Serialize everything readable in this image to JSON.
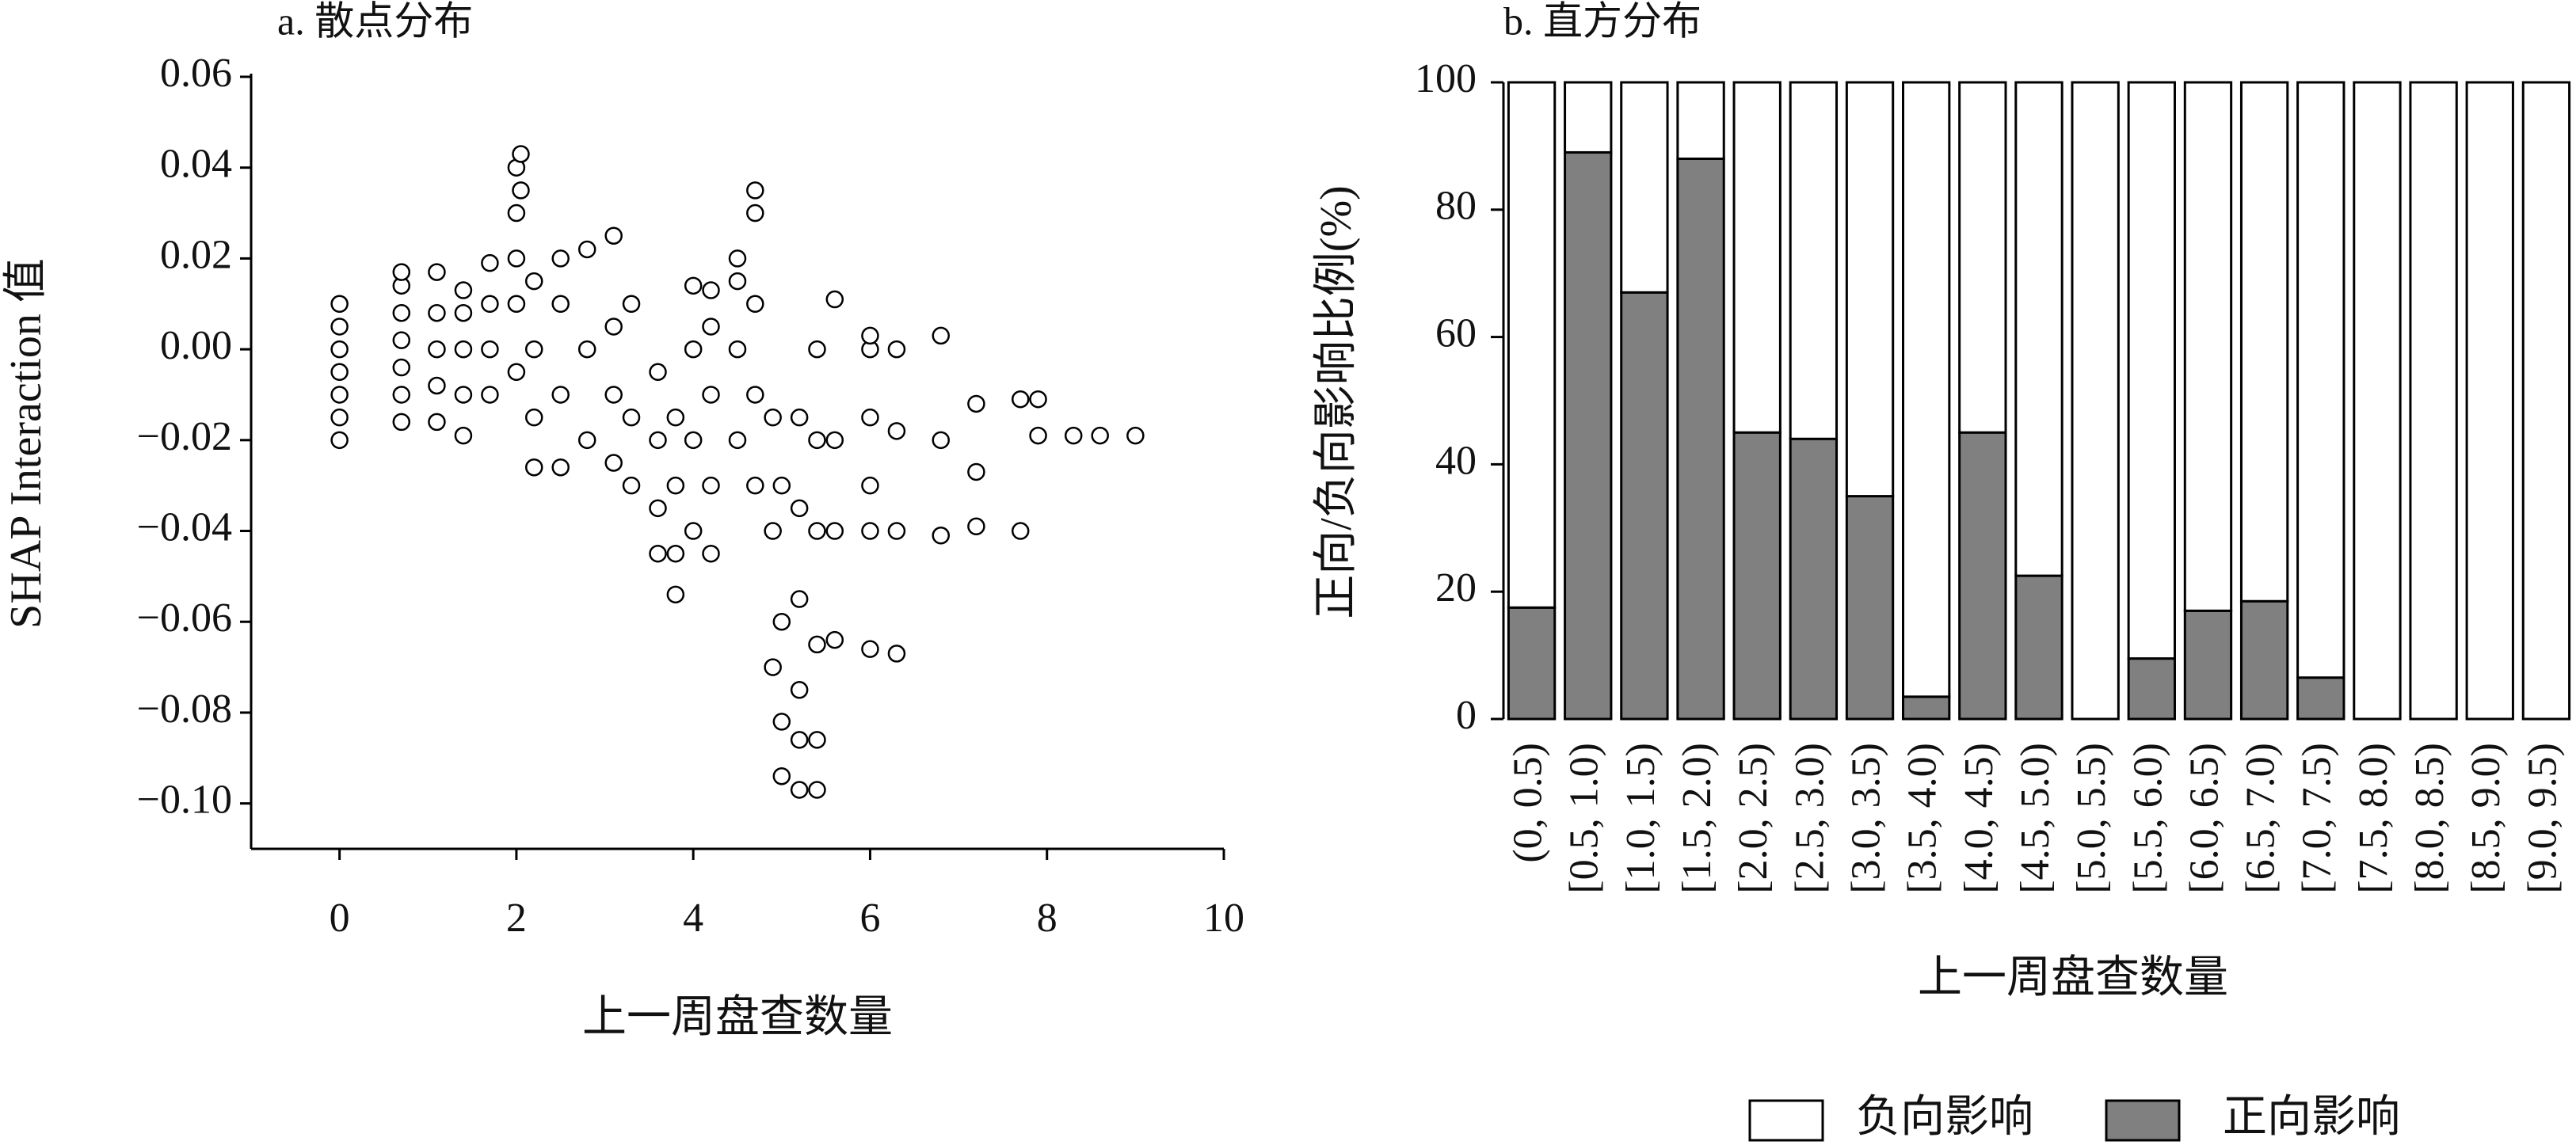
{
  "chart_data": [
    {
      "type": "scatter",
      "title": "a. 散点分布",
      "x_label": "上一周盘查数量",
      "y_label": "SHAP Interaction 值",
      "color": "#ffffff",
      "edge_color": "#000000",
      "x": [
        0,
        0,
        0,
        0,
        0,
        0,
        0,
        0.7,
        0.7,
        0.7,
        0.7,
        0.7,
        0.7,
        0.7,
        1.1,
        1.1,
        1.1,
        1.1,
        1.1,
        1.4,
        1.4,
        1.4,
        1.4,
        1.4,
        1.7,
        1.7,
        1.7,
        1.7,
        2.0,
        2.0,
        2.0,
        2.0,
        2.0,
        2.05,
        2.05,
        2.2,
        2.2,
        2.2,
        2.2,
        2.5,
        2.5,
        2.5,
        2.5,
        2.8,
        2.8,
        2.8,
        3.1,
        3.1,
        3.1,
        3.1,
        3.3,
        3.3,
        3.3,
        3.6,
        3.6,
        3.6,
        3.6,
        3.8,
        3.8,
        3.8,
        3.8,
        4.0,
        4.0,
        4.0,
        4.0,
        4.2,
        4.2,
        4.2,
        4.2,
        4.2,
        4.5,
        4.5,
        4.5,
        4.5,
        4.7,
        4.7,
        4.7,
        4.7,
        4.7,
        4.9,
        4.9,
        4.9,
        5.0,
        5.0,
        5.0,
        5.0,
        5.2,
        5.2,
        5.2,
        5.2,
        5.2,
        5.2,
        5.4,
        5.4,
        5.4,
        5.4,
        5.4,
        5.4,
        5.6,
        5.6,
        5.6,
        5.6,
        6.0,
        6.0,
        6.0,
        6.0,
        6.0,
        6.0,
        6.3,
        6.3,
        6.3,
        6.3,
        6.8,
        6.8,
        6.8,
        7.2,
        7.2,
        7.2,
        7.7,
        7.7,
        7.9,
        7.9,
        8.3,
        8.6,
        9.0
      ],
      "values": [
        -0.02,
        -0.015,
        -0.01,
        -0.005,
        0,
        0.005,
        0.01,
        -0.016,
        -0.01,
        -0.004,
        0.002,
        0.008,
        0.014,
        0.017,
        -0.016,
        -0.008,
        0,
        0.008,
        0.017,
        -0.019,
        -0.01,
        0,
        0.008,
        0.013,
        -0.01,
        0,
        0.01,
        0.019,
        -0.005,
        0.01,
        0.02,
        0.03,
        0.04,
        0.043,
        0.035,
        -0.026,
        -0.015,
        0,
        0.015,
        -0.026,
        -0.01,
        0.01,
        0.02,
        -0.02,
        0,
        0.022,
        -0.025,
        -0.01,
        0.005,
        0.025,
        -0.03,
        -0.015,
        0.01,
        -0.045,
        -0.035,
        -0.02,
        -0.005,
        -0.054,
        -0.045,
        -0.03,
        -0.015,
        -0.04,
        -0.02,
        0,
        0.014,
        -0.045,
        -0.03,
        -0.01,
        0.005,
        0.013,
        -0.02,
        0,
        0.015,
        0.02,
        -0.03,
        -0.01,
        0.01,
        0.03,
        0.035,
        -0.07,
        -0.04,
        -0.015,
        -0.094,
        -0.082,
        -0.06,
        -0.03,
        -0.097,
        -0.086,
        -0.075,
        -0.055,
        -0.035,
        -0.015,
        -0.097,
        -0.086,
        -0.065,
        -0.04,
        -0.02,
        0,
        -0.064,
        -0.04,
        -0.02,
        0.011,
        -0.066,
        -0.04,
        -0.03,
        -0.015,
        0,
        0.003,
        -0.067,
        -0.04,
        -0.018,
        0,
        -0.041,
        -0.02,
        0.003,
        -0.039,
        -0.027,
        -0.012,
        -0.04,
        -0.011,
        -0.019,
        -0.011,
        -0.019,
        -0.019,
        -0.019
      ],
      "xlim": [
        -1,
        10
      ],
      "xticks": [
        0,
        2,
        4,
        6,
        8,
        10
      ],
      "ylim": [
        -0.11,
        0.06
      ],
      "yticks": [
        {
          "value": 0.06,
          "label": "0.06"
        },
        {
          "value": 0.04,
          "label": "0.04"
        },
        {
          "value": 0.02,
          "label": "0.02"
        },
        {
          "value": 0,
          "label": "0.00"
        },
        {
          "value": -0.02,
          "label": "−0.02"
        },
        {
          "value": -0.04,
          "label": "−0.04"
        },
        {
          "value": -0.06,
          "label": "−0.06"
        },
        {
          "value": -0.08,
          "label": "−0.08"
        },
        {
          "value": -0.1,
          "label": "−0.10"
        }
      ]
    },
    {
      "type": "bar",
      "stacked": true,
      "title": "b. 直方分布",
      "x_label": "上一周盘查数量",
      "y_label": "正向/负向影响比例(%)",
      "legend": "bottom",
      "categories": [
        "(0, 0.5)",
        "[0.5, 1.0)",
        "[1.0, 1.5)",
        "[1.5, 2.0)",
        "[2.0, 2.5)",
        "[2.5, 3.0)",
        "[3.0, 3.5)",
        "[3.5, 4.0)",
        "[4.0, 4.5)",
        "[4.5, 5.0)",
        "[5.0, 5.5)",
        "[5.5, 6.0)",
        "[6.0, 6.5)",
        "[6.5, 7.0)",
        "[7.0, 7.5)",
        "[7.5, 8.0)",
        "[8.0, 8.5)",
        "[8.5, 9.0)",
        "[9.0, 9.5)"
      ],
      "series": [
        {
          "name": "负向影响",
          "color": "#ffffff",
          "values": [
            82.5,
            11,
            33,
            12,
            55,
            56,
            65,
            96.5,
            55,
            77.5,
            100,
            90.5,
            83,
            81.5,
            93.5,
            100,
            100,
            100,
            100
          ]
        },
        {
          "name": "正向影响",
          "color": "#808080",
          "values": [
            17.5,
            89,
            67,
            88,
            45,
            44,
            35,
            3.5,
            45,
            22.5,
            0,
            9.5,
            17,
            18.5,
            6.5,
            0,
            0,
            0,
            0
          ]
        }
      ],
      "ylim": [
        0,
        100
      ],
      "yticks": [
        0,
        20,
        40,
        60,
        80,
        100
      ]
    }
  ]
}
